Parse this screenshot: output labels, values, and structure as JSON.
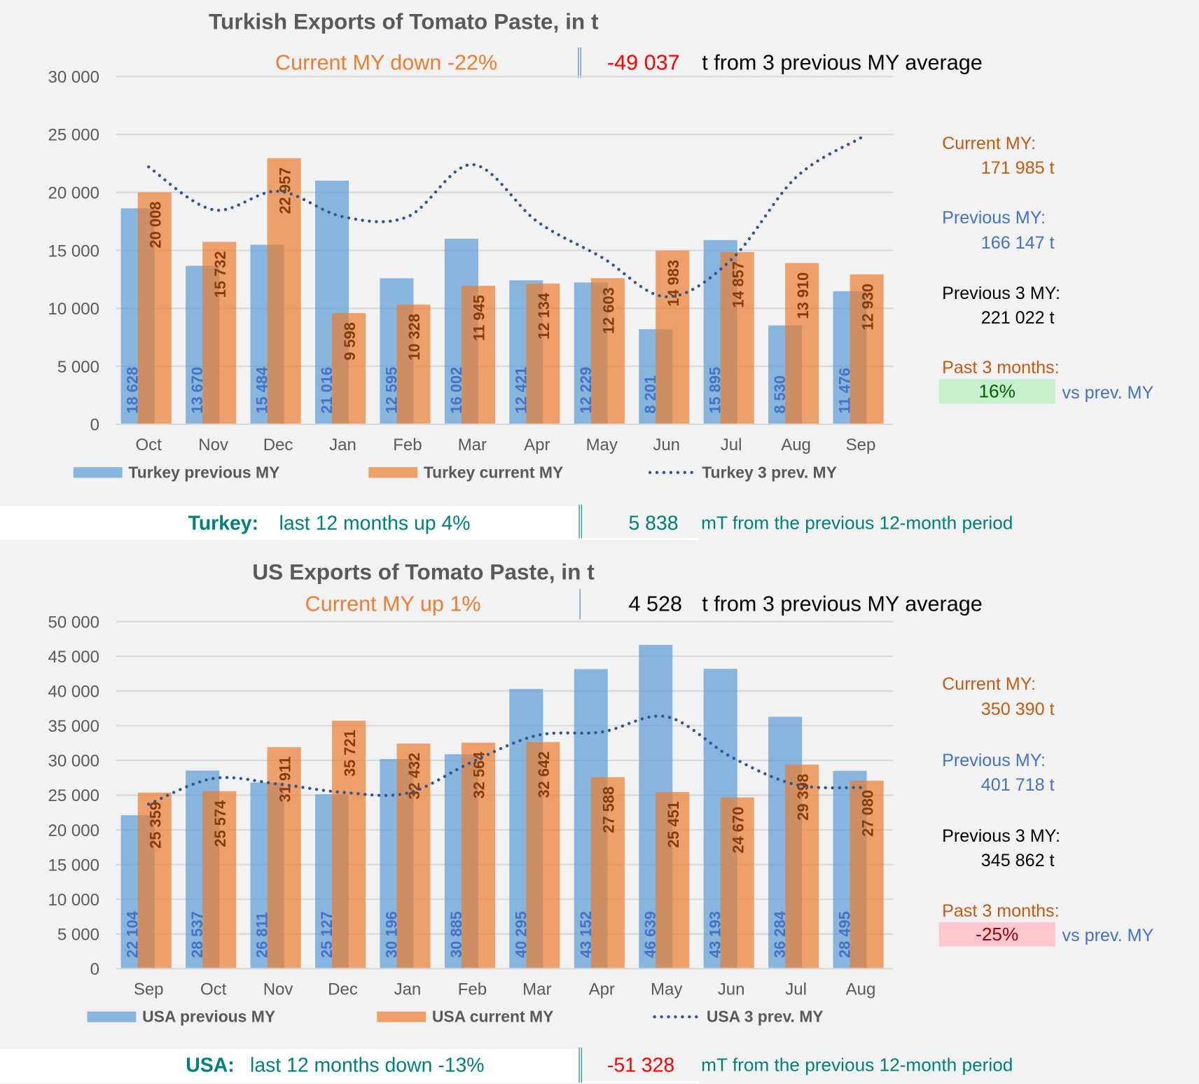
{
  "turkey": {
    "title": "Turkish Exports of Tomato Paste, in t",
    "headline_left": "Current MY down  -22%",
    "headline_value": "-49 037",
    "headline_right": "t from 3 previous MY average",
    "side": {
      "current_label": "Current MY:",
      "current_value": "171 985 t",
      "previous_label": "Previous MY:",
      "previous_value": "166 147 t",
      "prev3_label": "Previous 3 MY:",
      "prev3_value": "221 022 t",
      "past3_label": "Past 3 months:",
      "past3_value": "16%",
      "past3_suffix": "vs prev. MY",
      "past3_box_color": "#c6efce",
      "past3_text_color": "#006100"
    },
    "footer": {
      "country": "Turkey:",
      "trend": "last 12 months up  4%",
      "value": "5 838",
      "value_color": "#00807a",
      "suffix": "mT from the previous 12-month period"
    }
  },
  "usa": {
    "title": "US Exports of Tomato Paste, in t",
    "headline_left": "Current MY up  1%",
    "headline_value": "4 528",
    "headline_right": "t from 3 previous MY average",
    "side": {
      "current_label": "Current MY:",
      "current_value": "350 390 t",
      "previous_label": "Previous MY:",
      "previous_value": "401 718 t",
      "prev3_label": "Previous 3 MY:",
      "prev3_value": "345 862 t",
      "past3_label": "Past 3 months:",
      "past3_value": "-25%",
      "past3_suffix": "vs prev. MY",
      "past3_box_color": "#ffc7ce",
      "past3_text_color": "#9c0006"
    },
    "footer": {
      "country": "USA:",
      "trend": "last 12 months down  -13%",
      "value": "-51 328",
      "value_color": "#ff0000",
      "suffix": "mT from the previous 12-month period"
    }
  },
  "colors": {
    "previous": "#5b9bd5",
    "current": "#ed7d31",
    "line": "#2f5597",
    "prev_label": "#4472c4",
    "cur_label": "#843c0c"
  },
  "chart_data": [
    {
      "type": "bar",
      "title": "Turkish Exports of Tomato Paste, in t",
      "categories": [
        "Oct",
        "Nov",
        "Dec",
        "Jan",
        "Feb",
        "Mar",
        "Apr",
        "May",
        "Jun",
        "Jul",
        "Aug",
        "Sep"
      ],
      "ylim": [
        0,
        30000
      ],
      "yticks": [
        0,
        5000,
        10000,
        15000,
        20000,
        25000,
        30000
      ],
      "ytick_labels": [
        "0",
        "5 000",
        "10 000",
        "15 000",
        "20 000",
        "25 000",
        "30 000"
      ],
      "grid": true,
      "legend_position": "bottom",
      "series": [
        {
          "name": "Turkey previous MY",
          "kind": "bar",
          "values": [
            18628,
            13670,
            15484,
            21016,
            12595,
            16002,
            12421,
            12229,
            8201,
            15895,
            8530,
            11476
          ],
          "labels": [
            "18 628",
            "13 670",
            "15 484",
            "21 016",
            "12 595",
            "16 002",
            "12 421",
            "12 229",
            "8 201",
            "15 895",
            "8 530",
            "11 476"
          ]
        },
        {
          "name": "Turkey current MY",
          "kind": "bar",
          "values": [
            20008,
            15732,
            22957,
            9598,
            10328,
            11945,
            12134,
            12603,
            14983,
            14857,
            13910,
            12930
          ],
          "labels": [
            "20 008",
            "15 732",
            "22 957",
            "9 598",
            "10 328",
            "11 945",
            "12 134",
            "12 603",
            "14 983",
            "14 857",
            "13 910",
            "12 930"
          ]
        },
        {
          "name": "Turkey 3 prev. MY",
          "kind": "line",
          "values": [
            22200,
            18500,
            20100,
            17900,
            17900,
            22400,
            17500,
            14400,
            11000,
            14200,
            21300,
            24700
          ]
        }
      ]
    },
    {
      "type": "bar",
      "title": "US Exports of Tomato Paste, in t",
      "categories": [
        "Sep",
        "Oct",
        "Nov",
        "Dec",
        "Jan",
        "Feb",
        "Mar",
        "Apr",
        "May",
        "Jun",
        "Jul",
        "Aug"
      ],
      "ylim": [
        0,
        50000
      ],
      "yticks": [
        0,
        5000,
        10000,
        15000,
        20000,
        25000,
        30000,
        35000,
        40000,
        45000,
        50000
      ],
      "ytick_labels": [
        "0",
        "5 000",
        "10 000",
        "15 000",
        "20 000",
        "25 000",
        "30 000",
        "35 000",
        "40 000",
        "45 000",
        "50 000"
      ],
      "grid": true,
      "legend_position": "bottom",
      "series": [
        {
          "name": "USA previous MY",
          "kind": "bar",
          "values": [
            22104,
            28537,
            26811,
            25127,
            30196,
            30885,
            40295,
            43152,
            46639,
            43193,
            36284,
            28495
          ],
          "labels": [
            "22 104",
            "28 537",
            "26 811",
            "25 127",
            "30 196",
            "30 885",
            "40 295",
            "43 152",
            "46 639",
            "43 193",
            "36 284",
            "28 495"
          ]
        },
        {
          "name": "USA current MY",
          "kind": "bar",
          "values": [
            25359,
            25574,
            31911,
            35721,
            32432,
            32564,
            32642,
            27588,
            25451,
            24670,
            29398,
            27080
          ],
          "labels": [
            "25 359",
            "25 574",
            "31 911",
            "35 721",
            "32 432",
            "32 564",
            "32 642",
            "27 588",
            "25 451",
            "24 670",
            "29 398",
            "27 080"
          ]
        },
        {
          "name": "USA 3 prev. MY",
          "kind": "line",
          "values": [
            23700,
            27400,
            26600,
            25400,
            25300,
            29800,
            33600,
            34100,
            36300,
            30500,
            26500,
            26100
          ]
        }
      ]
    }
  ]
}
